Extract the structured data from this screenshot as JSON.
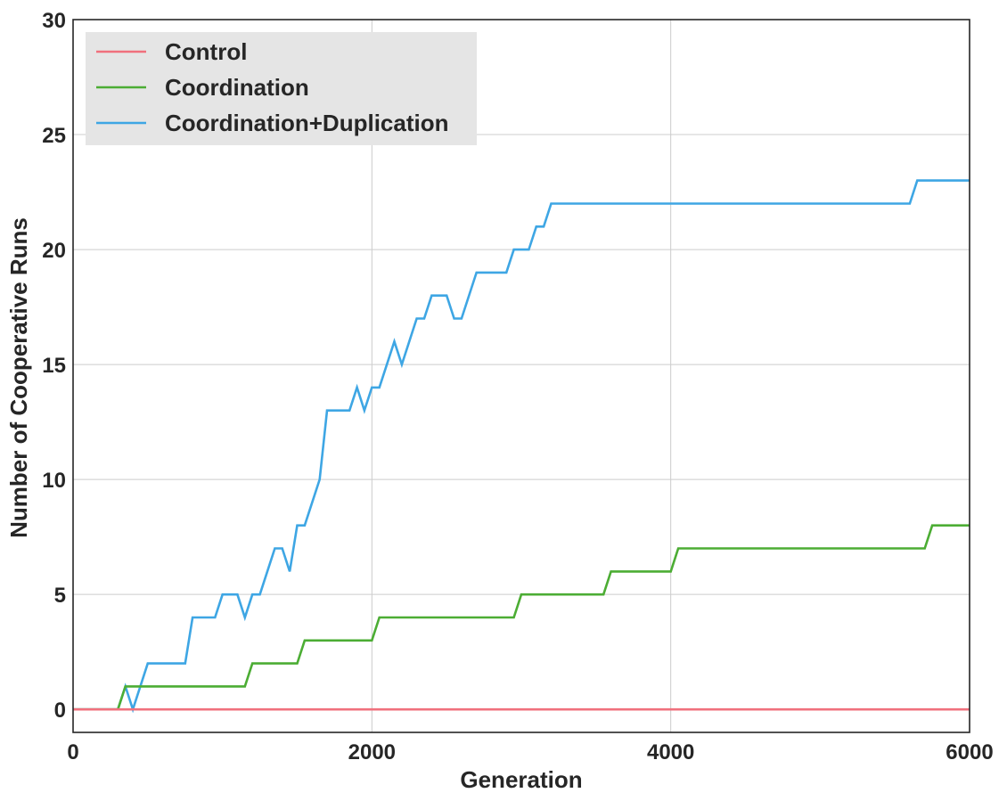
{
  "chart_data": {
    "type": "line",
    "title": "",
    "xlabel": "Generation",
    "ylabel": "Number of Cooperative Runs",
    "xlim": [
      0,
      6000
    ],
    "ylim": [
      -1,
      30
    ],
    "xticks": [
      0,
      2000,
      4000,
      6000
    ],
    "yticks": [
      0,
      5,
      10,
      15,
      20,
      25,
      30
    ],
    "grid": true,
    "legend": "top-left",
    "series": [
      {
        "name": "Control",
        "color": "#f0707d",
        "points": [
          [
            0,
            0
          ],
          [
            6000,
            0
          ]
        ]
      },
      {
        "name": "Coordination",
        "color": "#4cad34",
        "points": [
          [
            0,
            0
          ],
          [
            300,
            0
          ],
          [
            350,
            1
          ],
          [
            1150,
            1
          ],
          [
            1200,
            2
          ],
          [
            1500,
            2
          ],
          [
            1550,
            3
          ],
          [
            2000,
            3
          ],
          [
            2050,
            4
          ],
          [
            2950,
            4
          ],
          [
            3000,
            5
          ],
          [
            3550,
            5
          ],
          [
            3600,
            6
          ],
          [
            4000,
            6
          ],
          [
            4050,
            7
          ],
          [
            5700,
            7
          ],
          [
            5750,
            8
          ],
          [
            6000,
            8
          ]
        ]
      },
      {
        "name": "Coordination+Duplication",
        "color": "#3ea6e4",
        "points": [
          [
            0,
            0
          ],
          [
            300,
            0
          ],
          [
            350,
            1
          ],
          [
            400,
            0
          ],
          [
            500,
            2
          ],
          [
            750,
            2
          ],
          [
            800,
            4
          ],
          [
            950,
            4
          ],
          [
            1000,
            5
          ],
          [
            1100,
            5
          ],
          [
            1150,
            4
          ],
          [
            1200,
            5
          ],
          [
            1250,
            5
          ],
          [
            1350,
            7
          ],
          [
            1400,
            7
          ],
          [
            1450,
            6
          ],
          [
            1500,
            8
          ],
          [
            1550,
            8
          ],
          [
            1650,
            10
          ],
          [
            1700,
            13
          ],
          [
            1850,
            13
          ],
          [
            1900,
            14
          ],
          [
            1950,
            13
          ],
          [
            2000,
            14
          ],
          [
            2050,
            14
          ],
          [
            2150,
            16
          ],
          [
            2200,
            15
          ],
          [
            2300,
            17
          ],
          [
            2350,
            17
          ],
          [
            2400,
            18
          ],
          [
            2500,
            18
          ],
          [
            2550,
            17
          ],
          [
            2600,
            17
          ],
          [
            2700,
            19
          ],
          [
            2900,
            19
          ],
          [
            2950,
            20
          ],
          [
            3050,
            20
          ],
          [
            3100,
            21
          ],
          [
            3150,
            21
          ],
          [
            3200,
            22
          ],
          [
            5600,
            22
          ],
          [
            5650,
            23
          ],
          [
            6000,
            23
          ]
        ]
      }
    ]
  }
}
